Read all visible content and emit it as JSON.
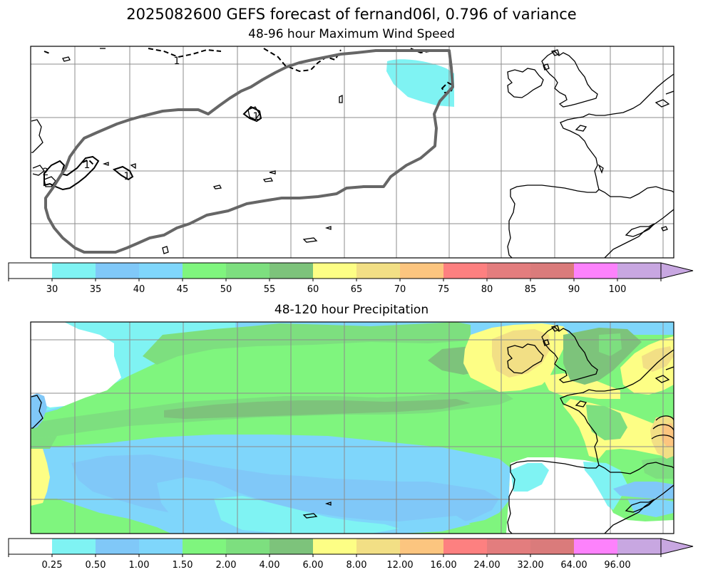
{
  "figure": {
    "title": "2025082600 GEFS forecast of fernand06l, 0.796 of variance"
  },
  "panels": [
    {
      "title": "48-96 hour Maximum Wind Speed",
      "contour_labels": [
        "1",
        "1",
        "1",
        "1",
        "2"
      ],
      "colorbar": {
        "ticks": [
          "30",
          "35",
          "40",
          "45",
          "50",
          "55",
          "60",
          "65",
          "70",
          "75",
          "80",
          "85",
          "90",
          "100"
        ],
        "colors": [
          "#ffffff",
          "#7ff3f3",
          "#80c8f8",
          "#7fd6fb",
          "#7ff57e",
          "#7ddf7f",
          "#7dc37b",
          "#fdfe85",
          "#f2df85",
          "#fcc57f",
          "#fd8080",
          "#e37d7e",
          "#da7b7b",
          "#fd82fc",
          "#c8a7e1"
        ]
      }
    },
    {
      "title": "48-120 hour Precipitation",
      "colorbar": {
        "ticks": [
          "0.25",
          "0.50",
          "1.00",
          "1.50",
          "2.00",
          "4.00",
          "6.00",
          "8.00",
          "12.00",
          "16.00",
          "24.00",
          "32.00",
          "64.00",
          "96.00"
        ],
        "colors": [
          "#ffffff",
          "#7ff3f3",
          "#80c8f8",
          "#7fd6fb",
          "#7ff57e",
          "#7ddf7f",
          "#7dc37b",
          "#fdfe85",
          "#f2df85",
          "#fcc57f",
          "#fd8080",
          "#e37d7e",
          "#da7b7b",
          "#fd82fc",
          "#c8a7e1"
        ]
      }
    }
  ]
}
